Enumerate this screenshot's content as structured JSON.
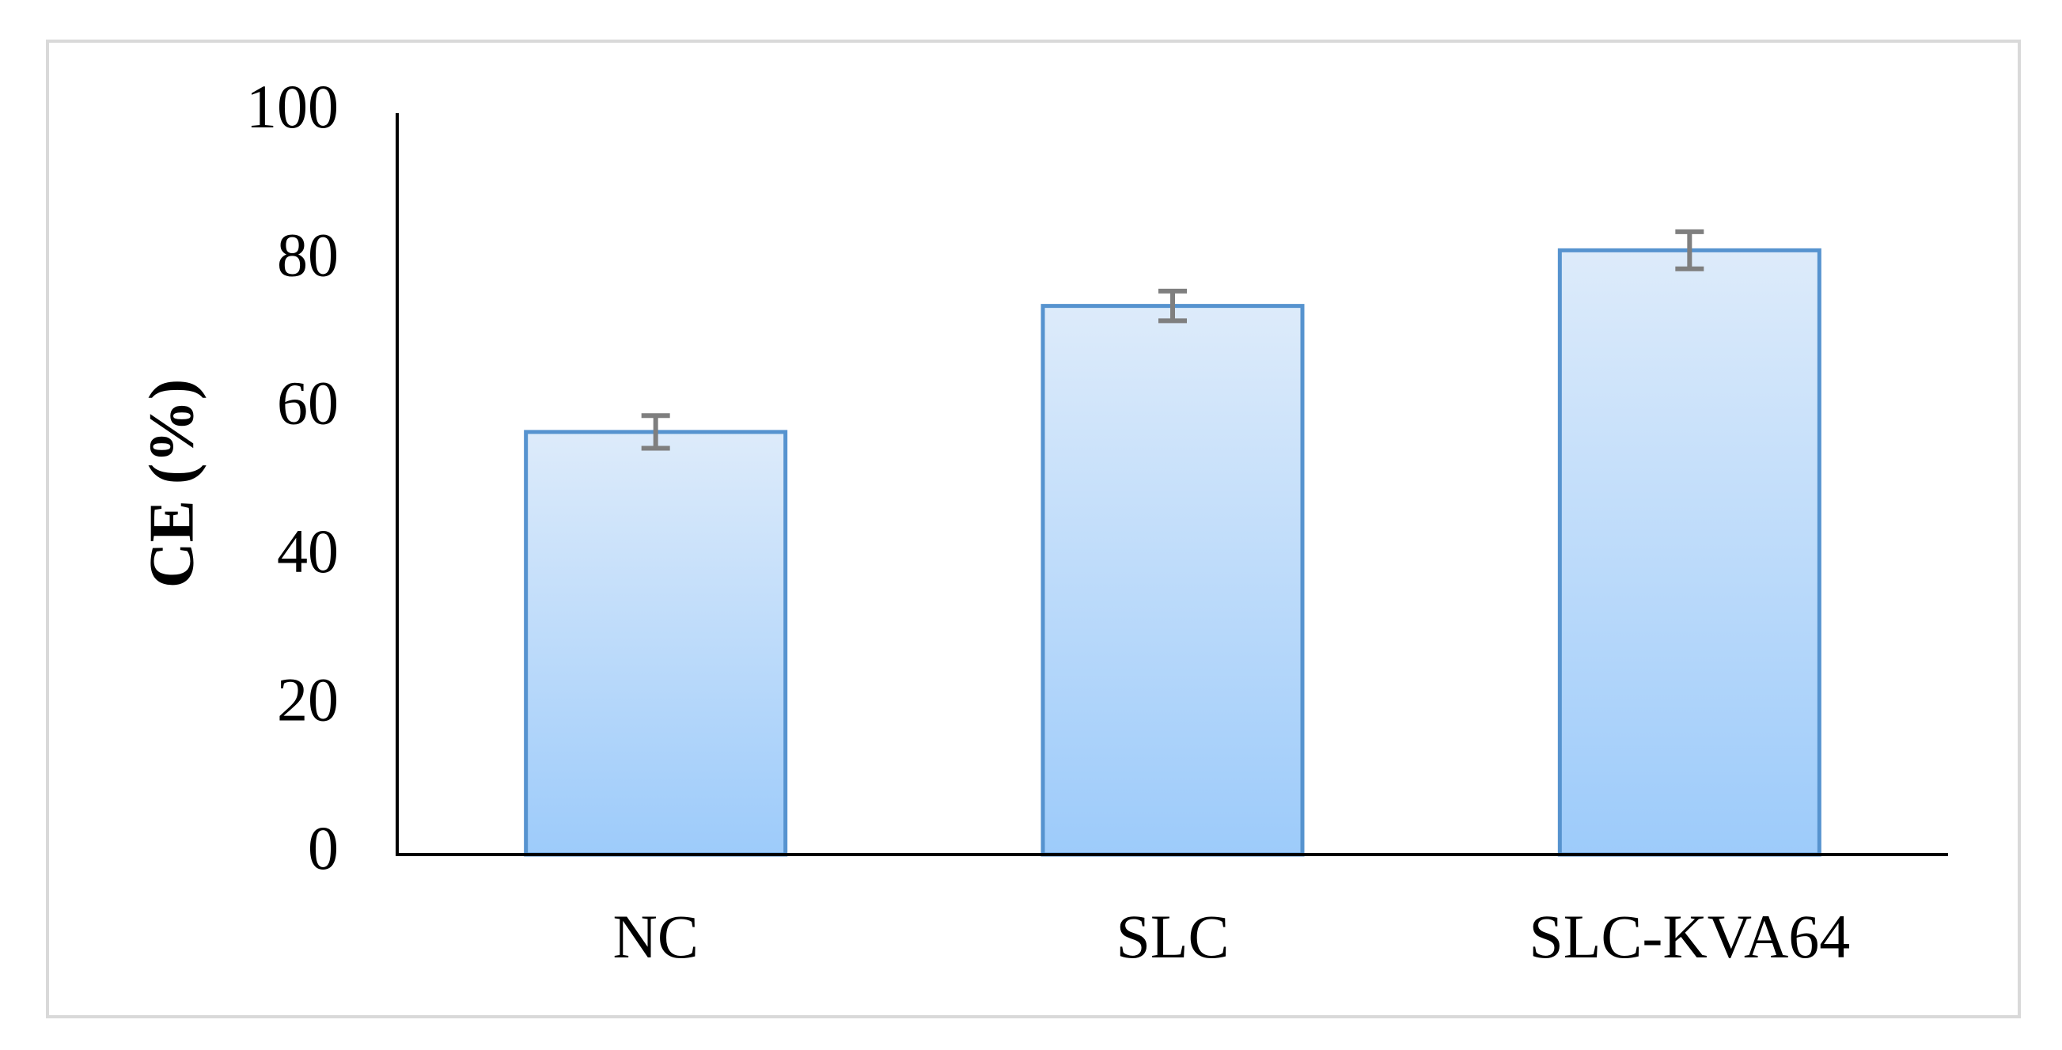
{
  "chart_data": {
    "type": "bar",
    "title": "",
    "xlabel": "",
    "ylabel": "CE (%)",
    "categories": [
      "NC",
      "SLC",
      "SLC-KVA64"
    ],
    "values": [
      57,
      74,
      81.5
    ],
    "error": [
      2.2,
      2.0,
      2.5
    ],
    "ylim": [
      0,
      100
    ],
    "yticks": [
      0,
      20,
      40,
      60,
      80,
      100
    ],
    "ytick_labels": [
      "0",
      "20",
      "40",
      "60",
      "80",
      "100"
    ],
    "grid": false,
    "legend": "none",
    "colors": {
      "bar_fill_top": "#ddebfa",
      "bar_fill_bottom": "#9dcbfa",
      "bar_edge": "#5693cf",
      "error_bar": "#7f7f7f",
      "axis": "#000000",
      "frame": "#d9d9d9"
    }
  }
}
